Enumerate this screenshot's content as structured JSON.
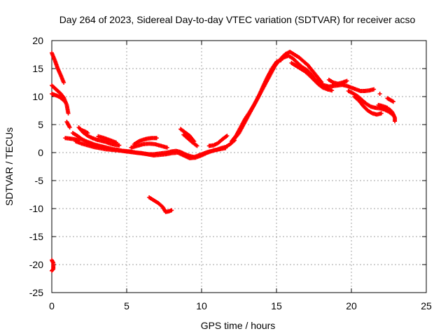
{
  "chart_data": {
    "type": "scatter",
    "title": "Day 264 of 2023, Sidereal Day-to-day VTEC variation (SDTVAR) for receiver acso",
    "xlabel": "GPS time / hours",
    "ylabel": "SDTVAR / TECUs",
    "xlim": [
      0,
      25
    ],
    "ylim": [
      -25,
      20
    ],
    "xticks": [
      0,
      5,
      10,
      15,
      20,
      25
    ],
    "yticks": [
      -25,
      -20,
      -15,
      -10,
      -5,
      0,
      5,
      10,
      15,
      20
    ],
    "grid": true,
    "marker": "+",
    "color": "#ff0000",
    "series": [
      {
        "name": "SDTVAR",
        "segments": [
          [
            [
              0.0,
              17.8
            ],
            [
              0.2,
              16.5
            ],
            [
              0.4,
              15.0
            ],
            [
              0.6,
              13.8
            ],
            [
              0.8,
              12.5
            ]
          ],
          [
            [
              0.0,
              12.0
            ],
            [
              0.2,
              11.5
            ],
            [
              0.4,
              11.0
            ],
            [
              0.6,
              10.5
            ],
            [
              0.8,
              9.8
            ],
            [
              1.0,
              8.5
            ],
            [
              1.1,
              7.0
            ]
          ],
          [
            [
              0.0,
              10.5
            ],
            [
              0.2,
              10.3
            ],
            [
              0.4,
              10.1
            ],
            [
              0.6,
              9.8
            ],
            [
              0.8,
              9.3
            ]
          ],
          [
            [
              1.0,
              5.5
            ],
            [
              1.2,
              4.5
            ]
          ],
          [
            [
              0.9,
              2.6
            ],
            [
              1.2,
              2.5
            ],
            [
              1.5,
              2.4
            ],
            [
              1.8,
              2.2
            ]
          ],
          [
            [
              1.4,
              3.5
            ],
            [
              1.7,
              3.0
            ],
            [
              2.0,
              2.4
            ],
            [
              2.3,
              2.0
            ],
            [
              2.6,
              1.7
            ],
            [
              2.9,
              1.4
            ],
            [
              3.2,
              1.2
            ],
            [
              3.5,
              1.0
            ],
            [
              3.8,
              0.8
            ],
            [
              4.1,
              0.6
            ],
            [
              4.4,
              0.5
            ],
            [
              4.7,
              0.3
            ],
            [
              5.0,
              0.2
            ],
            [
              5.3,
              0.1
            ],
            [
              5.6,
              0.0
            ],
            [
              5.9,
              -0.1
            ],
            [
              6.2,
              -0.2
            ],
            [
              6.5,
              -0.3
            ],
            [
              6.8,
              -0.3
            ],
            [
              7.1,
              -0.2
            ],
            [
              7.4,
              -0.1
            ],
            [
              7.7,
              0.0
            ],
            [
              8.0,
              0.2
            ],
            [
              8.3,
              0.3
            ],
            [
              8.6,
              0.1
            ],
            [
              8.9,
              -0.3
            ],
            [
              9.2,
              -0.6
            ],
            [
              9.5,
              -0.8
            ],
            [
              9.8,
              -0.5
            ],
            [
              10.1,
              -0.2
            ],
            [
              10.4,
              0.1
            ],
            [
              10.7,
              0.3
            ],
            [
              11.0,
              0.5
            ],
            [
              11.3,
              0.8
            ],
            [
              11.6,
              1.0
            ],
            [
              11.9,
              1.5
            ],
            [
              12.2,
              2.2
            ]
          ],
          [
            [
              1.6,
              2.0
            ],
            [
              2.0,
              1.6
            ],
            [
              2.4,
              1.3
            ],
            [
              2.8,
              1.0
            ],
            [
              3.2,
              0.8
            ],
            [
              3.6,
              0.6
            ],
            [
              4.0,
              0.5
            ],
            [
              4.4,
              0.4
            ],
            [
              4.8,
              0.3
            ],
            [
              5.2,
              0.2
            ],
            [
              5.6,
              0.0
            ],
            [
              6.0,
              -0.1
            ],
            [
              6.4,
              -0.3
            ],
            [
              6.8,
              -0.5
            ],
            [
              7.2,
              -0.4
            ],
            [
              7.6,
              -0.3
            ],
            [
              8.0,
              -0.1
            ],
            [
              8.4,
              0.0
            ],
            [
              8.8,
              -0.5
            ],
            [
              9.2,
              -1.0
            ],
            [
              9.6,
              -0.9
            ],
            [
              10.0,
              -0.5
            ],
            [
              10.4,
              0.0
            ],
            [
              10.8,
              0.4
            ],
            [
              11.2,
              0.6
            ],
            [
              11.6,
              0.8
            ]
          ],
          [
            [
              1.8,
              4.5
            ],
            [
              2.1,
              3.6
            ],
            [
              2.4,
              3.0
            ],
            [
              2.7,
              2.6
            ],
            [
              3.0,
              2.3
            ],
            [
              3.3,
              2.1
            ],
            [
              3.6,
              1.9
            ],
            [
              3.9,
              1.6
            ],
            [
              4.2,
              1.4
            ],
            [
              4.5,
              1.3
            ]
          ],
          [
            [
              3.1,
              2.9
            ],
            [
              3.5,
              2.6
            ],
            [
              3.9,
              2.2
            ],
            [
              4.3,
              1.8
            ]
          ],
          [
            [
              2.0,
              4.0
            ],
            [
              2.2,
              3.8
            ],
            [
              2.4,
              3.5
            ]
          ],
          [
            [
              5.5,
              1.5
            ],
            [
              5.8,
              2.0
            ],
            [
              6.1,
              2.3
            ],
            [
              6.4,
              2.5
            ],
            [
              6.7,
              2.6
            ],
            [
              7.0,
              2.6
            ]
          ],
          [
            [
              5.3,
              0.9
            ],
            [
              5.7,
              1.2
            ],
            [
              6.1,
              1.5
            ],
            [
              6.5,
              1.6
            ],
            [
              6.9,
              1.5
            ],
            [
              7.3,
              1.2
            ],
            [
              7.7,
              0.9
            ]
          ],
          [
            [
              8.6,
              4.2
            ],
            [
              8.9,
              3.6
            ],
            [
              9.2,
              3.0
            ],
            [
              9.5,
              2.0
            ]
          ],
          [
            [
              8.8,
              3.2
            ],
            [
              9.1,
              2.5
            ],
            [
              9.4,
              1.8
            ],
            [
              9.7,
              1.2
            ]
          ],
          [
            [
              10.5,
              1.2
            ],
            [
              10.8,
              1.3
            ],
            [
              11.1,
              1.7
            ],
            [
              11.4,
              2.4
            ],
            [
              11.7,
              3.0
            ]
          ],
          [
            [
              12.2,
              2.5
            ],
            [
              12.5,
              3.5
            ],
            [
              12.8,
              5.0
            ],
            [
              13.1,
              6.5
            ],
            [
              13.4,
              8.0
            ],
            [
              13.7,
              9.5
            ],
            [
              14.0,
              11.0
            ],
            [
              14.3,
              12.5
            ],
            [
              14.6,
              14.0
            ],
            [
              14.9,
              15.5
            ],
            [
              15.2,
              16.5
            ],
            [
              15.5,
              17.0
            ],
            [
              15.8,
              17.3
            ],
            [
              16.1,
              16.8
            ],
            [
              16.4,
              16.0
            ],
            [
              16.7,
              15.3
            ],
            [
              17.0,
              14.8
            ],
            [
              17.3,
              14.0
            ],
            [
              17.6,
              13.0
            ],
            [
              17.9,
              12.4
            ],
            [
              18.2,
              12.0
            ],
            [
              18.5,
              11.8
            ],
            [
              18.8,
              11.9
            ],
            [
              19.1,
              12.0
            ],
            [
              19.4,
              12.1
            ],
            [
              19.7,
              11.9
            ],
            [
              20.0,
              11.6
            ],
            [
              20.3,
              11.3
            ],
            [
              20.6,
              11.0
            ],
            [
              20.9,
              11.0
            ],
            [
              21.2,
              11.1
            ],
            [
              21.5,
              11.3
            ]
          ],
          [
            [
              12.0,
              2.0
            ],
            [
              12.3,
              3.0
            ],
            [
              12.6,
              4.5
            ],
            [
              12.9,
              6.0
            ],
            [
              13.2,
              7.2
            ],
            [
              13.5,
              8.5
            ],
            [
              13.8,
              10.0
            ],
            [
              14.1,
              11.8
            ],
            [
              14.4,
              13.5
            ],
            [
              14.7,
              15.0
            ],
            [
              15.0,
              16.2
            ],
            [
              15.3,
              16.5
            ]
          ],
          [
            [
              15.3,
              16.8
            ],
            [
              15.6,
              17.6
            ],
            [
              15.9,
              18.0
            ],
            [
              16.2,
              17.5
            ],
            [
              16.5,
              17.0
            ],
            [
              16.8,
              16.3
            ],
            [
              17.1,
              15.6
            ],
            [
              17.4,
              14.6
            ],
            [
              17.7,
              13.6
            ],
            [
              18.0,
              12.6
            ]
          ],
          [
            [
              16.0,
              16.0
            ],
            [
              16.3,
              15.5
            ],
            [
              16.6,
              15.0
            ],
            [
              16.9,
              14.5
            ],
            [
              17.2,
              13.8
            ],
            [
              17.5,
              13.0
            ],
            [
              17.8,
              12.2
            ],
            [
              18.1,
              11.6
            ],
            [
              18.4,
              11.3
            ],
            [
              18.7,
              11.1
            ]
          ],
          [
            [
              18.5,
              13.0
            ],
            [
              18.8,
              12.5
            ],
            [
              19.1,
              12.3
            ],
            [
              19.4,
              12.5
            ],
            [
              19.7,
              12.8
            ]
          ],
          [
            [
              19.8,
              11.0
            ],
            [
              20.1,
              10.6
            ],
            [
              20.4,
              10.1
            ],
            [
              20.7,
              9.4
            ],
            [
              21.0,
              8.7
            ],
            [
              21.3,
              8.2
            ],
            [
              21.6,
              8.0
            ],
            [
              21.9,
              7.9
            ],
            [
              22.2,
              7.7
            ],
            [
              22.5,
              7.3
            ],
            [
              22.8,
              6.7
            ]
          ],
          [
            [
              20.2,
              10.0
            ],
            [
              20.5,
              9.3
            ],
            [
              20.8,
              8.3
            ],
            [
              21.1,
              7.5
            ],
            [
              21.4,
              7.0
            ],
            [
              21.7,
              6.8
            ],
            [
              22.0,
              7.0
            ]
          ],
          [
            [
              21.8,
              8.5
            ],
            [
              22.1,
              8.3
            ],
            [
              22.4,
              8.0
            ]
          ],
          [
            [
              22.4,
              9.7
            ],
            [
              22.6,
              9.4
            ],
            [
              22.8,
              9.1
            ]
          ],
          [
            [
              22.5,
              7.8
            ],
            [
              22.7,
              7.3
            ],
            [
              22.8,
              6.8
            ],
            [
              22.9,
              6.2
            ],
            [
              22.9,
              5.6
            ]
          ],
          [
            [
              21.9,
              10.5
            ]
          ],
          [
            [
              0.0,
              -19.2
            ],
            [
              0.1,
              -19.7
            ],
            [
              0.1,
              -20.2
            ],
            [
              0.1,
              -20.8
            ],
            [
              0.0,
              -21.1
            ]
          ],
          [
            [
              6.5,
              -8.0
            ],
            [
              6.8,
              -8.5
            ],
            [
              7.1,
              -9.0
            ],
            [
              7.4,
              -9.7
            ],
            [
              7.6,
              -10.6
            ],
            [
              7.8,
              -10.5
            ],
            [
              8.0,
              -10.3
            ]
          ]
        ]
      }
    ]
  }
}
